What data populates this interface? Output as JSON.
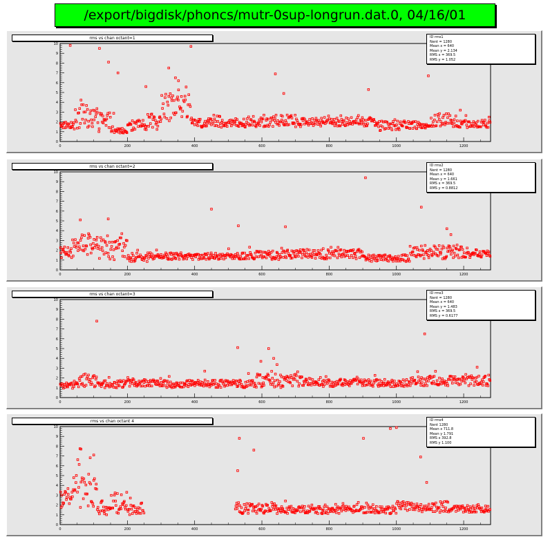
{
  "title": "/export/bigdisk/phoncs/mutr-0sup-longrun.dat.0, 04/16/01",
  "colors": {
    "title_bg": "#00ff00",
    "pad_bg": "#e6e6e6",
    "marker": "#ff0000"
  },
  "panels": [
    {
      "hist_title": "rms vs chan octant=1",
      "stats": [
        "ID  rms1",
        "Nent = 1280",
        "Mean x = 640",
        "Mean y = 2.134",
        "RMS x = 369.5",
        "RMS y = 1.052"
      ]
    },
    {
      "hist_title": "rms vs chan octant=2",
      "stats": [
        "ID  rms2",
        "Nent = 1280",
        "Mean x = 640",
        "Mean y = 1.661",
        "RMS x = 369.5",
        "RMS y = 0.8812"
      ]
    },
    {
      "hist_title": "rms vs chan octant=3",
      "stats": [
        "ID  rms3",
        "Nent = 1280",
        "Mean x = 640",
        "Mean y = 1.483",
        "RMS x = 369.5",
        "RMS y = 0.6177"
      ]
    },
    {
      "hist_title": "rms vs chan octant 4",
      "stats": [
        "ID  rms4",
        "Nent  1280",
        "Mean x  711.8",
        "Mean y  1.791",
        "RMS x  392.8",
        "RMS y  1.100"
      ]
    }
  ],
  "chart_data": [
    {
      "type": "scatter",
      "title": "rms vs chan octant=1",
      "xlim": [
        0,
        1280
      ],
      "ylim": [
        0,
        10
      ],
      "x_ticks": [
        0,
        200,
        400,
        600,
        800,
        1000,
        1200
      ],
      "y_ticks": [
        0,
        1,
        2,
        3,
        4,
        5,
        6,
        7,
        8,
        9,
        10
      ],
      "baseline_y": 1.7,
      "segments": [
        {
          "x": [
            0,
            40
          ],
          "level": 1.7,
          "spread": 0.35
        },
        {
          "x": [
            40,
            110
          ],
          "level": 2.5,
          "spread": 1.3
        },
        {
          "x": [
            110,
            160
          ],
          "level": 2.0,
          "spread": 1.0
        },
        {
          "x": [
            160,
            200
          ],
          "level": 1.1,
          "spread": 0.25
        },
        {
          "x": [
            200,
            260
          ],
          "level": 1.6,
          "spread": 0.6
        },
        {
          "x": [
            260,
            300
          ],
          "level": 2.0,
          "spread": 0.8
        },
        {
          "x": [
            300,
            390
          ],
          "level": 3.5,
          "spread": 1.4
        },
        {
          "x": [
            390,
            570
          ],
          "level": 1.9,
          "spread": 0.45
        },
        {
          "x": [
            570,
            720
          ],
          "level": 2.1,
          "spread": 0.6
        },
        {
          "x": [
            720,
            940
          ],
          "level": 2.0,
          "spread": 0.45
        },
        {
          "x": [
            940,
            1020
          ],
          "level": 1.6,
          "spread": 0.5
        },
        {
          "x": [
            1020,
            1100
          ],
          "level": 1.7,
          "spread": 0.4
        },
        {
          "x": [
            1100,
            1180
          ],
          "level": 2.2,
          "spread": 0.7
        },
        {
          "x": [
            1180,
            1280
          ],
          "level": 1.8,
          "spread": 0.4
        }
      ],
      "outliers": [
        [
          30,
          9.8
        ],
        [
          117,
          9.5
        ],
        [
          144,
          8.1
        ],
        [
          172,
          7.0
        ],
        [
          255,
          5.6
        ],
        [
          323,
          7.5
        ],
        [
          343,
          6.5
        ],
        [
          352,
          6.2
        ],
        [
          389,
          9.7
        ],
        [
          640,
          6.9
        ],
        [
          665,
          4.9
        ],
        [
          917,
          5.3
        ],
        [
          1095,
          6.7
        ],
        [
          1190,
          3.2
        ]
      ]
    },
    {
      "type": "scatter",
      "title": "rms vs chan octant=2",
      "xlim": [
        0,
        1280
      ],
      "ylim": [
        0,
        10
      ],
      "x_ticks": [
        0,
        200,
        400,
        600,
        800,
        1000,
        1200
      ],
      "y_ticks": [
        0,
        1,
        2,
        3,
        4,
        5,
        6,
        7,
        8,
        9,
        10
      ],
      "baseline_y": 1.4,
      "segments": [
        {
          "x": [
            0,
            40
          ],
          "level": 1.8,
          "spread": 0.6
        },
        {
          "x": [
            40,
            110
          ],
          "level": 2.6,
          "spread": 1.1
        },
        {
          "x": [
            110,
            200
          ],
          "level": 2.2,
          "spread": 1.2
        },
        {
          "x": [
            200,
            260
          ],
          "level": 1.2,
          "spread": 0.35
        },
        {
          "x": [
            260,
            560
          ],
          "level": 1.4,
          "spread": 0.35
        },
        {
          "x": [
            560,
            700
          ],
          "level": 1.5,
          "spread": 0.45
        },
        {
          "x": [
            700,
            900
          ],
          "level": 1.6,
          "spread": 0.5
        },
        {
          "x": [
            900,
            1040
          ],
          "level": 1.2,
          "spread": 0.35
        },
        {
          "x": [
            1040,
            1200
          ],
          "level": 1.8,
          "spread": 0.7
        },
        {
          "x": [
            1200,
            1280
          ],
          "level": 1.6,
          "spread": 0.35
        }
      ],
      "outliers": [
        [
          60,
          5.1
        ],
        [
          143,
          5.2
        ],
        [
          450,
          6.2
        ],
        [
          530,
          4.5
        ],
        [
          670,
          4.4
        ],
        [
          908,
          9.4
        ],
        [
          1074,
          6.4
        ],
        [
          1150,
          4.2
        ],
        [
          1162,
          3.6
        ]
      ]
    },
    {
      "type": "scatter",
      "title": "rms vs chan octant=3",
      "xlim": [
        0,
        1280
      ],
      "ylim": [
        0,
        10
      ],
      "x_ticks": [
        0,
        200,
        400,
        600,
        800,
        1000,
        1200
      ],
      "y_ticks": [
        0,
        1,
        2,
        3,
        4,
        5,
        6,
        7,
        8,
        9,
        10
      ],
      "baseline_y": 1.4,
      "segments": [
        {
          "x": [
            0,
            40
          ],
          "level": 1.2,
          "spread": 0.3
        },
        {
          "x": [
            40,
            120
          ],
          "level": 1.7,
          "spread": 0.7
        },
        {
          "x": [
            120,
            200
          ],
          "level": 1.4,
          "spread": 0.4
        },
        {
          "x": [
            200,
            280
          ],
          "level": 1.5,
          "spread": 0.35
        },
        {
          "x": [
            280,
            560
          ],
          "level": 1.4,
          "spread": 0.4
        },
        {
          "x": [
            560,
            720
          ],
          "level": 1.7,
          "spread": 0.7
        },
        {
          "x": [
            720,
            1040
          ],
          "level": 1.5,
          "spread": 0.4
        },
        {
          "x": [
            1040,
            1200
          ],
          "level": 1.7,
          "spread": 0.5
        },
        {
          "x": [
            1200,
            1280
          ],
          "level": 1.8,
          "spread": 0.6
        }
      ],
      "outliers": [
        [
          109,
          7.8
        ],
        [
          430,
          2.7
        ],
        [
          528,
          5.1
        ],
        [
          597,
          3.7
        ],
        [
          620,
          5.0
        ],
        [
          635,
          4.0
        ],
        [
          1084,
          6.5
        ],
        [
          1240,
          3.1
        ]
      ]
    },
    {
      "type": "scatter",
      "title": "rms vs chan octant 4",
      "xlim": [
        0,
        1280
      ],
      "ylim": [
        0,
        10
      ],
      "x_ticks": [
        0,
        200,
        400,
        600,
        800,
        1000,
        1200
      ],
      "y_ticks": [
        0,
        1,
        2,
        3,
        4,
        5,
        6,
        7,
        8,
        9,
        10
      ],
      "baseline_y": 1.5,
      "segments": [
        {
          "x": [
            0,
            40
          ],
          "level": 2.6,
          "spread": 1.1
        },
        {
          "x": [
            40,
            110
          ],
          "level": 3.5,
          "spread": 1.8
        },
        {
          "x": [
            110,
            150
          ],
          "level": 1.8,
          "spread": 0.8
        },
        {
          "x": [
            150,
            200
          ],
          "level": 2.2,
          "spread": 1.1
        },
        {
          "x": [
            200,
            250
          ],
          "level": 1.5,
          "spread": 0.5
        },
        {
          "x": [
            520,
            640
          ],
          "level": 1.7,
          "spread": 0.6
        },
        {
          "x": [
            640,
            1000
          ],
          "level": 1.5,
          "spread": 0.4
        },
        {
          "x": [
            1000,
            1160
          ],
          "level": 1.8,
          "spread": 0.6
        },
        {
          "x": [
            1160,
            1280
          ],
          "level": 1.6,
          "spread": 0.35
        }
      ],
      "outliers": [
        [
          62,
          7.7
        ],
        [
          100,
          7.1
        ],
        [
          528,
          5.5
        ],
        [
          533,
          8.8
        ],
        [
          576,
          7.6
        ],
        [
          902,
          8.8
        ],
        [
          982,
          9.8
        ],
        [
          1000,
          9.9
        ],
        [
          1072,
          6.9
        ],
        [
          1090,
          4.3
        ]
      ]
    }
  ]
}
